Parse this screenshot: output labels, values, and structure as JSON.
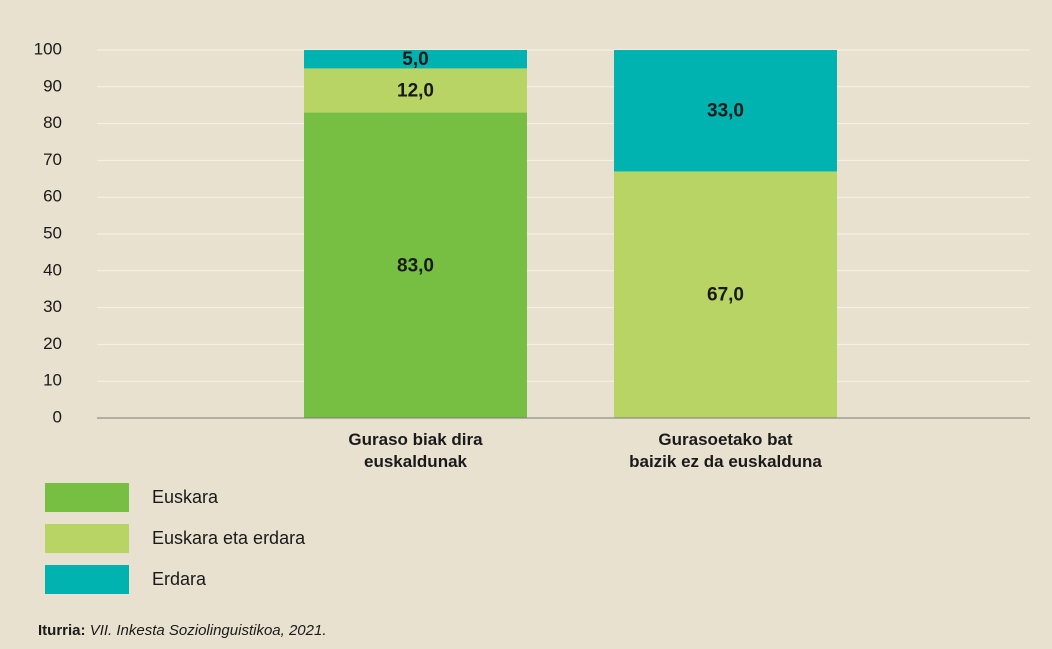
{
  "chart_data": {
    "type": "stacked_bar",
    "categories": [
      "Guraso biak dira\neuskaldunak",
      "Gurasoetako bat\nbaizik ez da euskalduna"
    ],
    "series": [
      {
        "name": "Euskara",
        "color": "#77bf43",
        "values": [
          83,
          null
        ],
        "value_labels": [
          "83,0",
          null
        ]
      },
      {
        "name": "Euskara eta erdara",
        "color": "#b8d465",
        "values": [
          12,
          67
        ],
        "value_labels": [
          "12,0",
          "67,0"
        ]
      },
      {
        "name": "Erdara",
        "color": "#00b2b0",
        "values": [
          5,
          33
        ],
        "value_labels": [
          "5,0",
          "33,0"
        ]
      }
    ],
    "ylim": [
      0,
      100
    ],
    "yticks": [
      0,
      10,
      20,
      30,
      40,
      50,
      60,
      70,
      80,
      90,
      100
    ],
    "grid": true,
    "source_label": "Iturria:",
    "source_text": "VII. Inkesta Soziolinguistikoa, 2021."
  }
}
